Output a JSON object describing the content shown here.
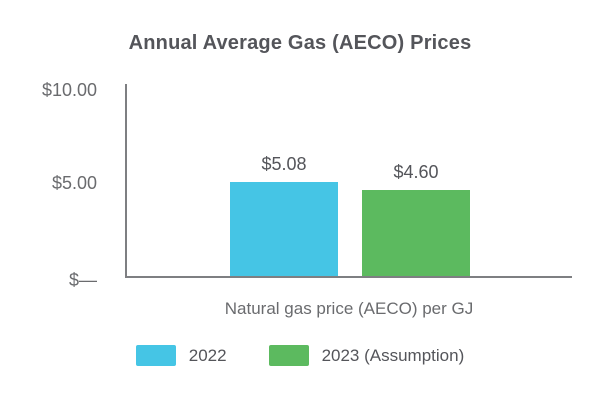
{
  "title": "Annual Average Gas (AECO) Prices",
  "chart_data": {
    "type": "bar",
    "title": "Annual Average Gas (AECO) Prices",
    "categories": [
      "Natural gas price (AECO) per GJ"
    ],
    "series": [
      {
        "name": "2022",
        "values": [
          5.08
        ],
        "data_label": "$5.08",
        "color": "#45C5E5"
      },
      {
        "name": "2023 (Assumption)",
        "values": [
          4.6
        ],
        "data_label": "$4.60",
        "color": "#5CBA5F"
      }
    ],
    "xlabel": "Natural gas price (AECO) per GJ",
    "ylabel": "",
    "ylim": [
      0,
      10
    ],
    "yticks": [
      {
        "value": 0,
        "label": "$—"
      },
      {
        "value": 5,
        "label": "$5.00"
      },
      {
        "value": 10,
        "label": "$10.00"
      }
    ],
    "grid": false,
    "legend_position": "bottom",
    "colors": {
      "axis_line": "#7E7F82",
      "text_dark": "#54555A",
      "text_gray": "#6A6B6E",
      "background": "#FFFFFF"
    }
  }
}
